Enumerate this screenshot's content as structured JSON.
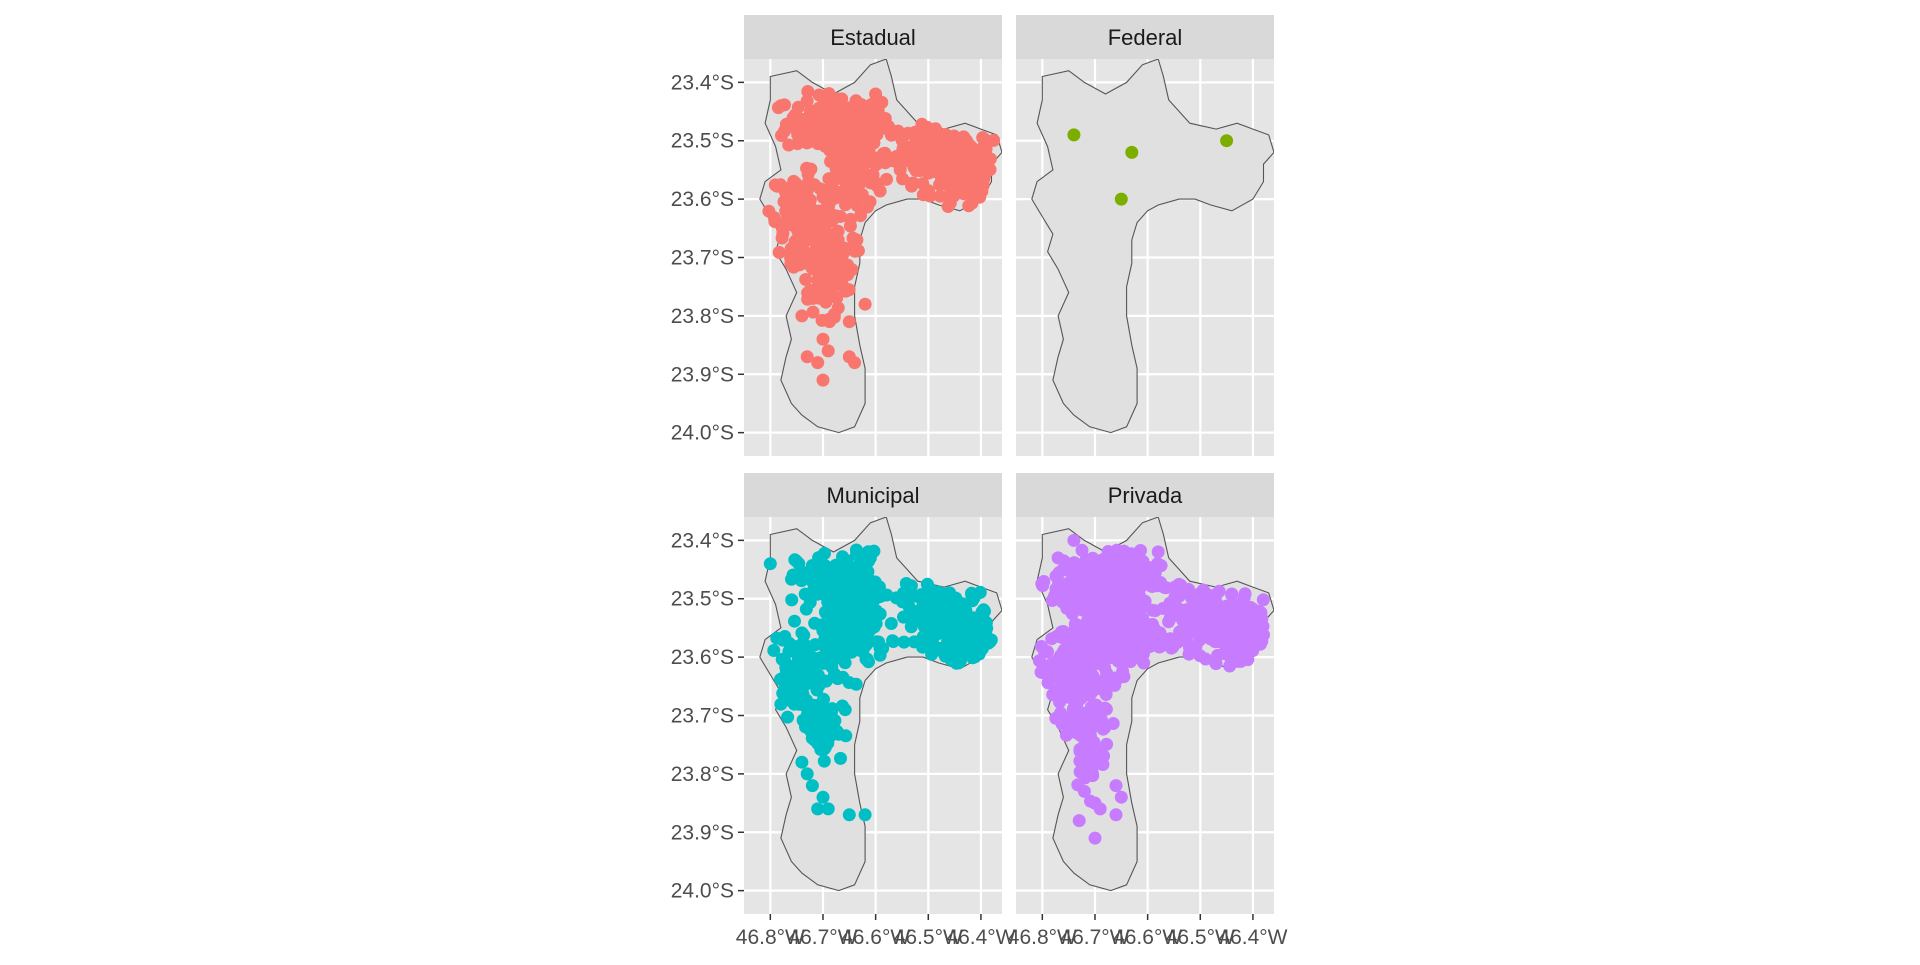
{
  "chart_data": {
    "type": "scatter",
    "subtype": "faceted point map",
    "facet_layout": "2x2",
    "panel_background": "#e5e5e5",
    "strip_background": "#d9d9d9",
    "grid": true,
    "legend": "none",
    "xlim": [
      -46.85,
      -46.36
    ],
    "ylim": [
      -24.04,
      -23.36
    ],
    "x_ticks": [
      -46.8,
      -46.7,
      -46.6,
      -46.5,
      -46.4
    ],
    "x_tick_labels": [
      "46.8°W",
      "46.7°W",
      "46.6°W",
      "46.5°W",
      "46.4°W"
    ],
    "y_ticks": [
      -23.4,
      -23.5,
      -23.6,
      -23.7,
      -23.8,
      -23.9,
      -24.0
    ],
    "y_tick_labels": [
      "23.4°S",
      "23.5°S",
      "23.6°S",
      "23.7°S",
      "23.8°S",
      "23.9°S",
      "24.0°S"
    ],
    "boundary_fill": "#e0e0e0",
    "boundary_stroke": "#555555",
    "boundary": [
      [
        -46.8,
        -23.39
      ],
      [
        -46.75,
        -23.38
      ],
      [
        -46.72,
        -23.4
      ],
      [
        -46.68,
        -23.42
      ],
      [
        -46.64,
        -23.4
      ],
      [
        -46.61,
        -23.37
      ],
      [
        -46.58,
        -23.36
      ],
      [
        -46.57,
        -23.39
      ],
      [
        -46.56,
        -23.43
      ],
      [
        -46.52,
        -23.47
      ],
      [
        -46.47,
        -23.48
      ],
      [
        -46.43,
        -23.47
      ],
      [
        -46.4,
        -23.48
      ],
      [
        -46.37,
        -23.49
      ],
      [
        -46.36,
        -23.52
      ],
      [
        -46.38,
        -23.54
      ],
      [
        -46.38,
        -23.57
      ],
      [
        -46.4,
        -23.6
      ],
      [
        -46.44,
        -23.62
      ],
      [
        -46.48,
        -23.61
      ],
      [
        -46.51,
        -23.6
      ],
      [
        -46.54,
        -23.6
      ],
      [
        -46.58,
        -23.61
      ],
      [
        -46.6,
        -23.62
      ],
      [
        -46.62,
        -23.64
      ],
      [
        -46.63,
        -23.67
      ],
      [
        -46.63,
        -23.71
      ],
      [
        -46.64,
        -23.75
      ],
      [
        -46.64,
        -23.8
      ],
      [
        -46.63,
        -23.85
      ],
      [
        -46.62,
        -23.89
      ],
      [
        -46.62,
        -23.95
      ],
      [
        -46.64,
        -23.99
      ],
      [
        -46.67,
        -24.0
      ],
      [
        -46.71,
        -23.99
      ],
      [
        -46.74,
        -23.97
      ],
      [
        -46.76,
        -23.95
      ],
      [
        -46.78,
        -23.91
      ],
      [
        -46.77,
        -23.87
      ],
      [
        -46.76,
        -23.84
      ],
      [
        -46.77,
        -23.8
      ],
      [
        -46.75,
        -23.76
      ],
      [
        -46.77,
        -23.72
      ],
      [
        -46.79,
        -23.69
      ],
      [
        -46.78,
        -23.66
      ],
      [
        -46.8,
        -23.63
      ],
      [
        -46.82,
        -23.6
      ],
      [
        -46.81,
        -23.57
      ],
      [
        -46.78,
        -23.55
      ],
      [
        -46.79,
        -23.51
      ],
      [
        -46.81,
        -23.47
      ],
      [
        -46.8,
        -23.43
      ]
    ],
    "facets": [
      {
        "name": "Estadual",
        "color": "#f8766d",
        "clusters": [
          {
            "x": -46.67,
            "y": -23.47,
            "rx": 0.1,
            "ry": 0.05,
            "n": 180
          },
          {
            "x": -46.48,
            "y": -23.52,
            "rx": 0.1,
            "ry": 0.05,
            "n": 180
          },
          {
            "x": -46.43,
            "y": -23.57,
            "rx": 0.06,
            "ry": 0.05,
            "n": 90
          },
          {
            "x": -46.65,
            "y": -23.55,
            "rx": 0.07,
            "ry": 0.07,
            "n": 120
          },
          {
            "x": -46.74,
            "y": -23.61,
            "rx": 0.06,
            "ry": 0.06,
            "n": 80
          },
          {
            "x": -46.74,
            "y": -23.67,
            "rx": 0.04,
            "ry": 0.07,
            "n": 70
          },
          {
            "x": -46.68,
            "y": -23.7,
            "rx": 0.04,
            "ry": 0.06,
            "n": 50
          },
          {
            "x": -46.7,
            "y": -23.77,
            "rx": 0.03,
            "ry": 0.05,
            "n": 25
          }
        ],
        "points": [
          {
            "x": -46.78,
            "y": -23.44
          },
          {
            "x": -46.6,
            "y": -23.42
          },
          {
            "x": -46.74,
            "y": -23.8
          },
          {
            "x": -46.7,
            "y": -23.84
          },
          {
            "x": -46.69,
            "y": -23.86
          },
          {
            "x": -46.73,
            "y": -23.87
          },
          {
            "x": -46.71,
            "y": -23.88
          },
          {
            "x": -46.65,
            "y": -23.81
          },
          {
            "x": -46.65,
            "y": -23.87
          },
          {
            "x": -46.64,
            "y": -23.88
          },
          {
            "x": -46.7,
            "y": -23.91
          },
          {
            "x": -46.62,
            "y": -23.78
          }
        ]
      },
      {
        "name": "Federal",
        "color": "#7cae00",
        "clusters": [],
        "points": [
          {
            "x": -46.74,
            "y": -23.49
          },
          {
            "x": -46.63,
            "y": -23.52
          },
          {
            "x": -46.45,
            "y": -23.5
          },
          {
            "x": -46.65,
            "y": -23.6
          }
        ]
      },
      {
        "name": "Municipal",
        "color": "#00bfc4",
        "clusters": [
          {
            "x": -46.67,
            "y": -23.47,
            "rx": 0.08,
            "ry": 0.05,
            "n": 140
          },
          {
            "x": -46.47,
            "y": -23.53,
            "rx": 0.09,
            "ry": 0.05,
            "n": 160
          },
          {
            "x": -46.43,
            "y": -23.58,
            "rx": 0.05,
            "ry": 0.05,
            "n": 80
          },
          {
            "x": -46.65,
            "y": -23.56,
            "rx": 0.07,
            "ry": 0.07,
            "n": 120
          },
          {
            "x": -46.74,
            "y": -23.63,
            "rx": 0.06,
            "ry": 0.07,
            "n": 90
          },
          {
            "x": -46.7,
            "y": -23.72,
            "rx": 0.04,
            "ry": 0.05,
            "n": 50
          }
        ],
        "points": [
          {
            "x": -46.8,
            "y": -23.44
          },
          {
            "x": -46.61,
            "y": -23.43
          },
          {
            "x": -46.73,
            "y": -23.8
          },
          {
            "x": -46.72,
            "y": -23.82
          },
          {
            "x": -46.7,
            "y": -23.84
          },
          {
            "x": -46.69,
            "y": -23.86
          },
          {
            "x": -46.71,
            "y": -23.86
          },
          {
            "x": -46.65,
            "y": -23.87
          },
          {
            "x": -46.62,
            "y": -23.87
          },
          {
            "x": -46.74,
            "y": -23.78
          }
        ]
      },
      {
        "name": "Privada",
        "color": "#c77cff",
        "clusters": [
          {
            "x": -46.68,
            "y": -23.47,
            "rx": 0.1,
            "ry": 0.05,
            "n": 220
          },
          {
            "x": -46.47,
            "y": -23.53,
            "rx": 0.1,
            "ry": 0.05,
            "n": 220
          },
          {
            "x": -46.42,
            "y": -23.57,
            "rx": 0.05,
            "ry": 0.05,
            "n": 90
          },
          {
            "x": -46.67,
            "y": -23.56,
            "rx": 0.09,
            "ry": 0.07,
            "n": 200
          },
          {
            "x": -46.75,
            "y": -23.63,
            "rx": 0.06,
            "ry": 0.07,
            "n": 110
          },
          {
            "x": -46.72,
            "y": -23.7,
            "rx": 0.05,
            "ry": 0.06,
            "n": 70
          },
          {
            "x": -46.71,
            "y": -23.77,
            "rx": 0.03,
            "ry": 0.05,
            "n": 30
          }
        ],
        "points": [
          {
            "x": -46.77,
            "y": -23.43
          },
          {
            "x": -46.74,
            "y": -23.4
          },
          {
            "x": -46.72,
            "y": -23.83
          },
          {
            "x": -46.7,
            "y": -23.85
          },
          {
            "x": -46.69,
            "y": -23.86
          },
          {
            "x": -46.66,
            "y": -23.82
          },
          {
            "x": -46.66,
            "y": -23.87
          },
          {
            "x": -46.73,
            "y": -23.88
          },
          {
            "x": -46.7,
            "y": -23.91
          },
          {
            "x": -46.65,
            "y": -23.84
          }
        ]
      }
    ]
  }
}
